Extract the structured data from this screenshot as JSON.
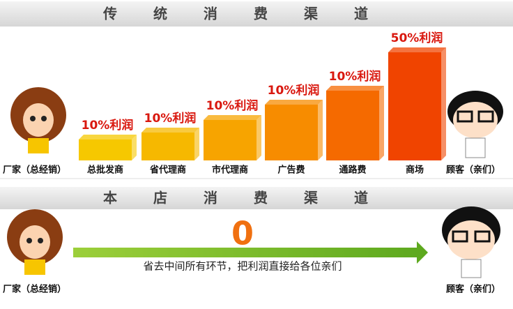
{
  "top_section": {
    "title": "传统消费渠道",
    "start": "厂家（总经销）",
    "end": "顾客（亲们）",
    "channels": [
      {
        "name": "总批发商",
        "profit": "10%利润"
      },
      {
        "name": "省代理商",
        "profit": "10%利润"
      },
      {
        "name": "市代理商",
        "profit": "10%利润"
      },
      {
        "name": "广告费",
        "profit": "10%利润"
      },
      {
        "name": "通路费",
        "profit": "10%利润"
      },
      {
        "name": "商场",
        "profit": "50%利润"
      }
    ]
  },
  "bottom_section": {
    "title": "本店消费渠道",
    "start": "厂家（总经销）",
    "end": "顾客（亲们）",
    "big_number": "0",
    "message": "省去中间所有环节，把利润直接给各位亲们"
  }
}
